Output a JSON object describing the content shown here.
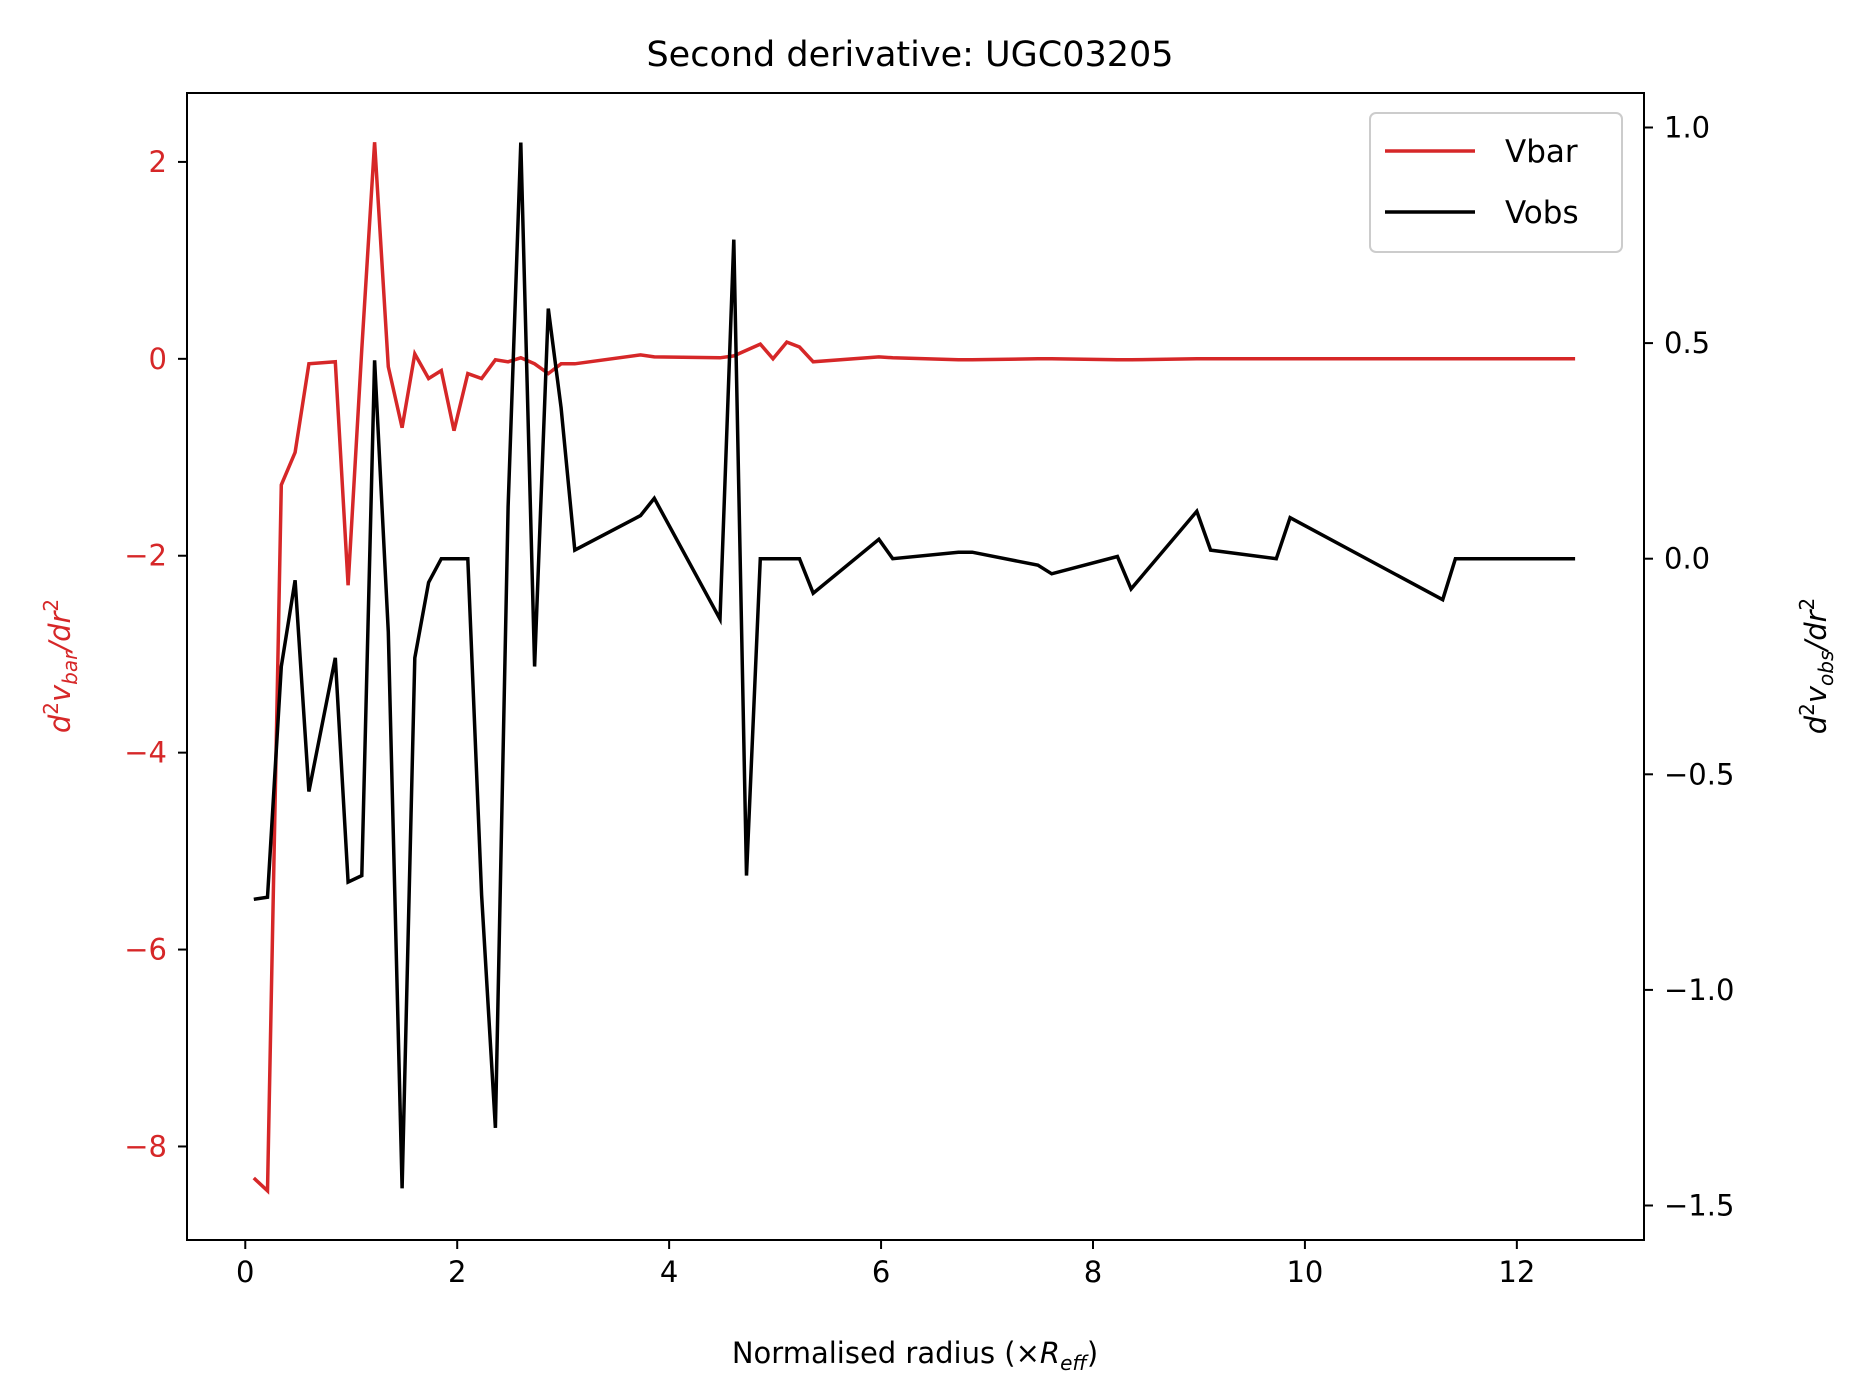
{
  "chart_data": {
    "type": "line",
    "title": "Second derivative: UGC03205",
    "xlabel": {
      "main": "Normalised radius (×",
      "var": "R",
      "sub": "eff",
      "close": ")"
    },
    "ylabel_left": {
      "base": "d",
      "sup1": "2",
      "v": "v",
      "sub": "bar",
      "mid": "/dr",
      "sup2": "2"
    },
    "ylabel_right": {
      "base": "d",
      "sup1": "2",
      "v": "v",
      "sub": "obs",
      "mid": "/dr",
      "sup2": "2"
    },
    "xlim": [
      -0.55,
      13.2
    ],
    "ylim_left": [
      -8.95,
      2.7
    ],
    "ylim_right": [
      -1.58,
      1.08
    ],
    "x_ticks": [
      0,
      2,
      4,
      6,
      8,
      10,
      12
    ],
    "x_tick_labels": [
      "0",
      "2",
      "4",
      "6",
      "8",
      "10",
      "12"
    ],
    "y_left_ticks": [
      -8,
      -6,
      -4,
      -2,
      0,
      2
    ],
    "y_left_tick_labels": [
      "−8",
      "−6",
      "−4",
      "−2",
      "0",
      "2"
    ],
    "y_right_ticks": [
      -1.5,
      -1.0,
      -0.5,
      0.0,
      0.5,
      1.0
    ],
    "y_right_tick_labels": [
      "−1.5",
      "−1.0",
      "−0.5",
      "0.0",
      "0.5",
      "1.0"
    ],
    "grid": false,
    "legend_position": "top-right",
    "series": [
      {
        "name": "Vbar",
        "axis": "left",
        "color": "#d62728",
        "points": [
          [
            0.08,
            -8.32
          ],
          [
            0.21,
            -8.45
          ],
          [
            0.34,
            -1.28
          ],
          [
            0.47,
            -0.95
          ],
          [
            0.6,
            -0.05
          ],
          [
            0.85,
            -0.03
          ],
          [
            0.97,
            -2.3
          ],
          [
            1.1,
            0.1
          ],
          [
            1.22,
            2.2
          ],
          [
            1.35,
            -0.08
          ],
          [
            1.48,
            -0.7
          ],
          [
            1.6,
            0.05
          ],
          [
            1.73,
            -0.2
          ],
          [
            1.85,
            -0.12
          ],
          [
            1.97,
            -0.73
          ],
          [
            2.1,
            -0.15
          ],
          [
            2.23,
            -0.2
          ],
          [
            2.36,
            -0.01
          ],
          [
            2.48,
            -0.03
          ],
          [
            2.6,
            0.01
          ],
          [
            2.73,
            -0.05
          ],
          [
            2.86,
            -0.15
          ],
          [
            2.98,
            -0.05
          ],
          [
            3.11,
            -0.05
          ],
          [
            3.73,
            0.04
          ],
          [
            3.86,
            0.02
          ],
          [
            4.48,
            0.01
          ],
          [
            4.61,
            0.03
          ],
          [
            4.86,
            0.15
          ],
          [
            4.98,
            0.0
          ],
          [
            5.11,
            0.17
          ],
          [
            5.23,
            0.12
          ],
          [
            5.36,
            -0.03
          ],
          [
            5.98,
            0.02
          ],
          [
            6.11,
            0.01
          ],
          [
            6.73,
            -0.01
          ],
          [
            6.86,
            -0.01
          ],
          [
            7.48,
            0.0
          ],
          [
            7.61,
            0.0
          ],
          [
            8.23,
            -0.01
          ],
          [
            8.36,
            -0.01
          ],
          [
            8.98,
            0.0
          ],
          [
            9.11,
            0.0
          ],
          [
            9.73,
            0.0
          ],
          [
            9.86,
            0.0
          ],
          [
            11.3,
            0.0
          ],
          [
            11.42,
            0.0
          ],
          [
            12.55,
            0.0
          ]
        ]
      },
      {
        "name": "Vobs",
        "axis": "right",
        "color": "#000000",
        "points": [
          [
            0.08,
            -0.79
          ],
          [
            0.21,
            -0.785
          ],
          [
            0.34,
            -0.25
          ],
          [
            0.47,
            -0.05
          ],
          [
            0.6,
            -0.54
          ],
          [
            0.85,
            -0.23
          ],
          [
            0.97,
            -0.75
          ],
          [
            1.1,
            -0.735
          ],
          [
            1.22,
            0.46
          ],
          [
            1.35,
            -0.17
          ],
          [
            1.48,
            -1.46
          ],
          [
            1.6,
            -0.23
          ],
          [
            1.73,
            -0.055
          ],
          [
            1.85,
            0.0
          ],
          [
            1.97,
            0.0
          ],
          [
            2.1,
            0.0
          ],
          [
            2.23,
            -0.78
          ],
          [
            2.36,
            -1.32
          ],
          [
            2.48,
            0.12
          ],
          [
            2.6,
            0.965
          ],
          [
            2.73,
            -0.25
          ],
          [
            2.86,
            0.58
          ],
          [
            2.98,
            0.35
          ],
          [
            3.11,
            0.02
          ],
          [
            3.73,
            0.1
          ],
          [
            3.86,
            0.14
          ],
          [
            4.48,
            -0.14
          ],
          [
            4.61,
            0.74
          ],
          [
            4.73,
            -0.735
          ],
          [
            4.86,
            0.0
          ],
          [
            5.23,
            0.0
          ],
          [
            5.36,
            -0.08
          ],
          [
            5.98,
            0.045
          ],
          [
            6.11,
            0.0
          ],
          [
            6.73,
            0.015
          ],
          [
            6.86,
            0.015
          ],
          [
            7.48,
            -0.015
          ],
          [
            7.61,
            -0.035
          ],
          [
            8.23,
            0.005
          ],
          [
            8.36,
            -0.07
          ],
          [
            8.98,
            0.11
          ],
          [
            9.11,
            0.02
          ],
          [
            9.73,
            0.0
          ],
          [
            9.86,
            0.095
          ],
          [
            11.3,
            -0.095
          ],
          [
            11.42,
            0.0
          ],
          [
            12.55,
            0.0
          ]
        ]
      }
    ]
  }
}
